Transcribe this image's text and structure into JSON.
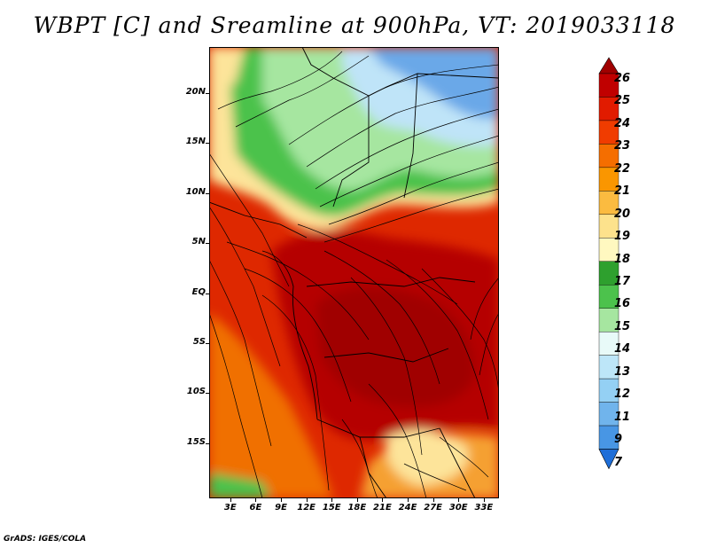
{
  "title": "WBPT [C] and Sreamline at 900hPa, VT: 2019033118",
  "credit": "GrADS: IGES/COLA",
  "lat_ticks": [
    {
      "label": "20N",
      "value": 20
    },
    {
      "label": "15N",
      "value": 15
    },
    {
      "label": "10N",
      "value": 10
    },
    {
      "label": "5N",
      "value": 5
    },
    {
      "label": "EQ",
      "value": 0
    },
    {
      "label": "5S",
      "value": -5
    },
    {
      "label": "10S",
      "value": -10
    },
    {
      "label": "15S",
      "value": -15
    }
  ],
  "lon_ticks": [
    {
      "label": "3E",
      "value": 3
    },
    {
      "label": "6E",
      "value": 6
    },
    {
      "label": "9E",
      "value": 9
    },
    {
      "label": "12E",
      "value": 12
    },
    {
      "label": "15E",
      "value": 15
    },
    {
      "label": "18E",
      "value": 18
    },
    {
      "label": "21E",
      "value": 21
    },
    {
      "label": "24E",
      "value": 24
    },
    {
      "label": "27E",
      "value": 27
    },
    {
      "label": "30E",
      "value": 30
    },
    {
      "label": "33E",
      "value": 33
    }
  ],
  "colorbar": {
    "labels": [
      "26",
      "25",
      "24",
      "23",
      "22",
      "21",
      "20",
      "19",
      "18",
      "17",
      "16",
      "15",
      "14",
      "13",
      "12",
      "11",
      "9",
      "7"
    ],
    "colors": [
      "#a00000",
      "#c00000",
      "#e11b00",
      "#f03c00",
      "#f56e00",
      "#fa9600",
      "#fbbb40",
      "#fde28c",
      "#fff8c0",
      "#2ea02e",
      "#4cc24c",
      "#a6e6a0",
      "#e8faf8",
      "#bde6f8",
      "#94d0f4",
      "#70b4ec",
      "#4896e4",
      "#1e6ed8"
    ]
  },
  "map_colors": {
    "hot": "#b50000",
    "warm": "#de2800",
    "orange": "#f07000",
    "pale": "#fde49a",
    "green": "#4cc24c",
    "lightgreen": "#a6e6a0",
    "lightblue": "#bfe4f8",
    "blue": "#6aa8e8"
  }
}
